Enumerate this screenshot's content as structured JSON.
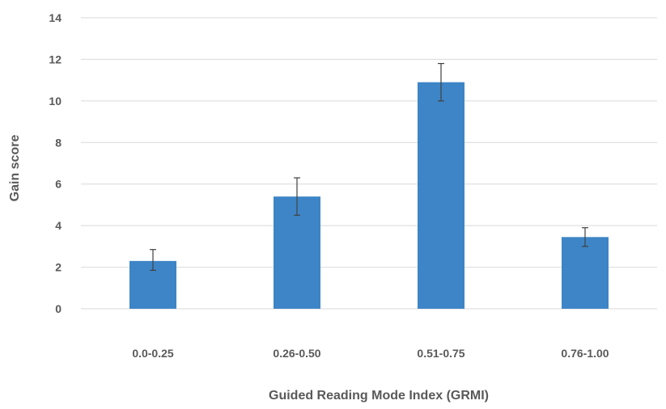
{
  "chart_data": {
    "type": "bar",
    "title": "",
    "xlabel": "Guided Reading Mode Index (GRMI)",
    "ylabel": "Gain score",
    "categories": [
      "0.0-0.25",
      "0.26-0.50",
      "0.51-0.75",
      "0.76-1.00"
    ],
    "values": [
      2.3,
      5.4,
      10.9,
      3.45
    ],
    "error_low": [
      1.85,
      4.5,
      10.0,
      3.0
    ],
    "error_high": [
      2.85,
      6.3,
      11.8,
      3.9
    ],
    "ylim": [
      0,
      14
    ],
    "yticks": [
      0,
      2,
      4,
      6,
      8,
      10,
      12,
      14
    ],
    "grid": true,
    "legend": "none",
    "colors": {
      "bar": "#3d85c6",
      "grid": "#d9d9d9",
      "error_bar": "#404040"
    }
  }
}
